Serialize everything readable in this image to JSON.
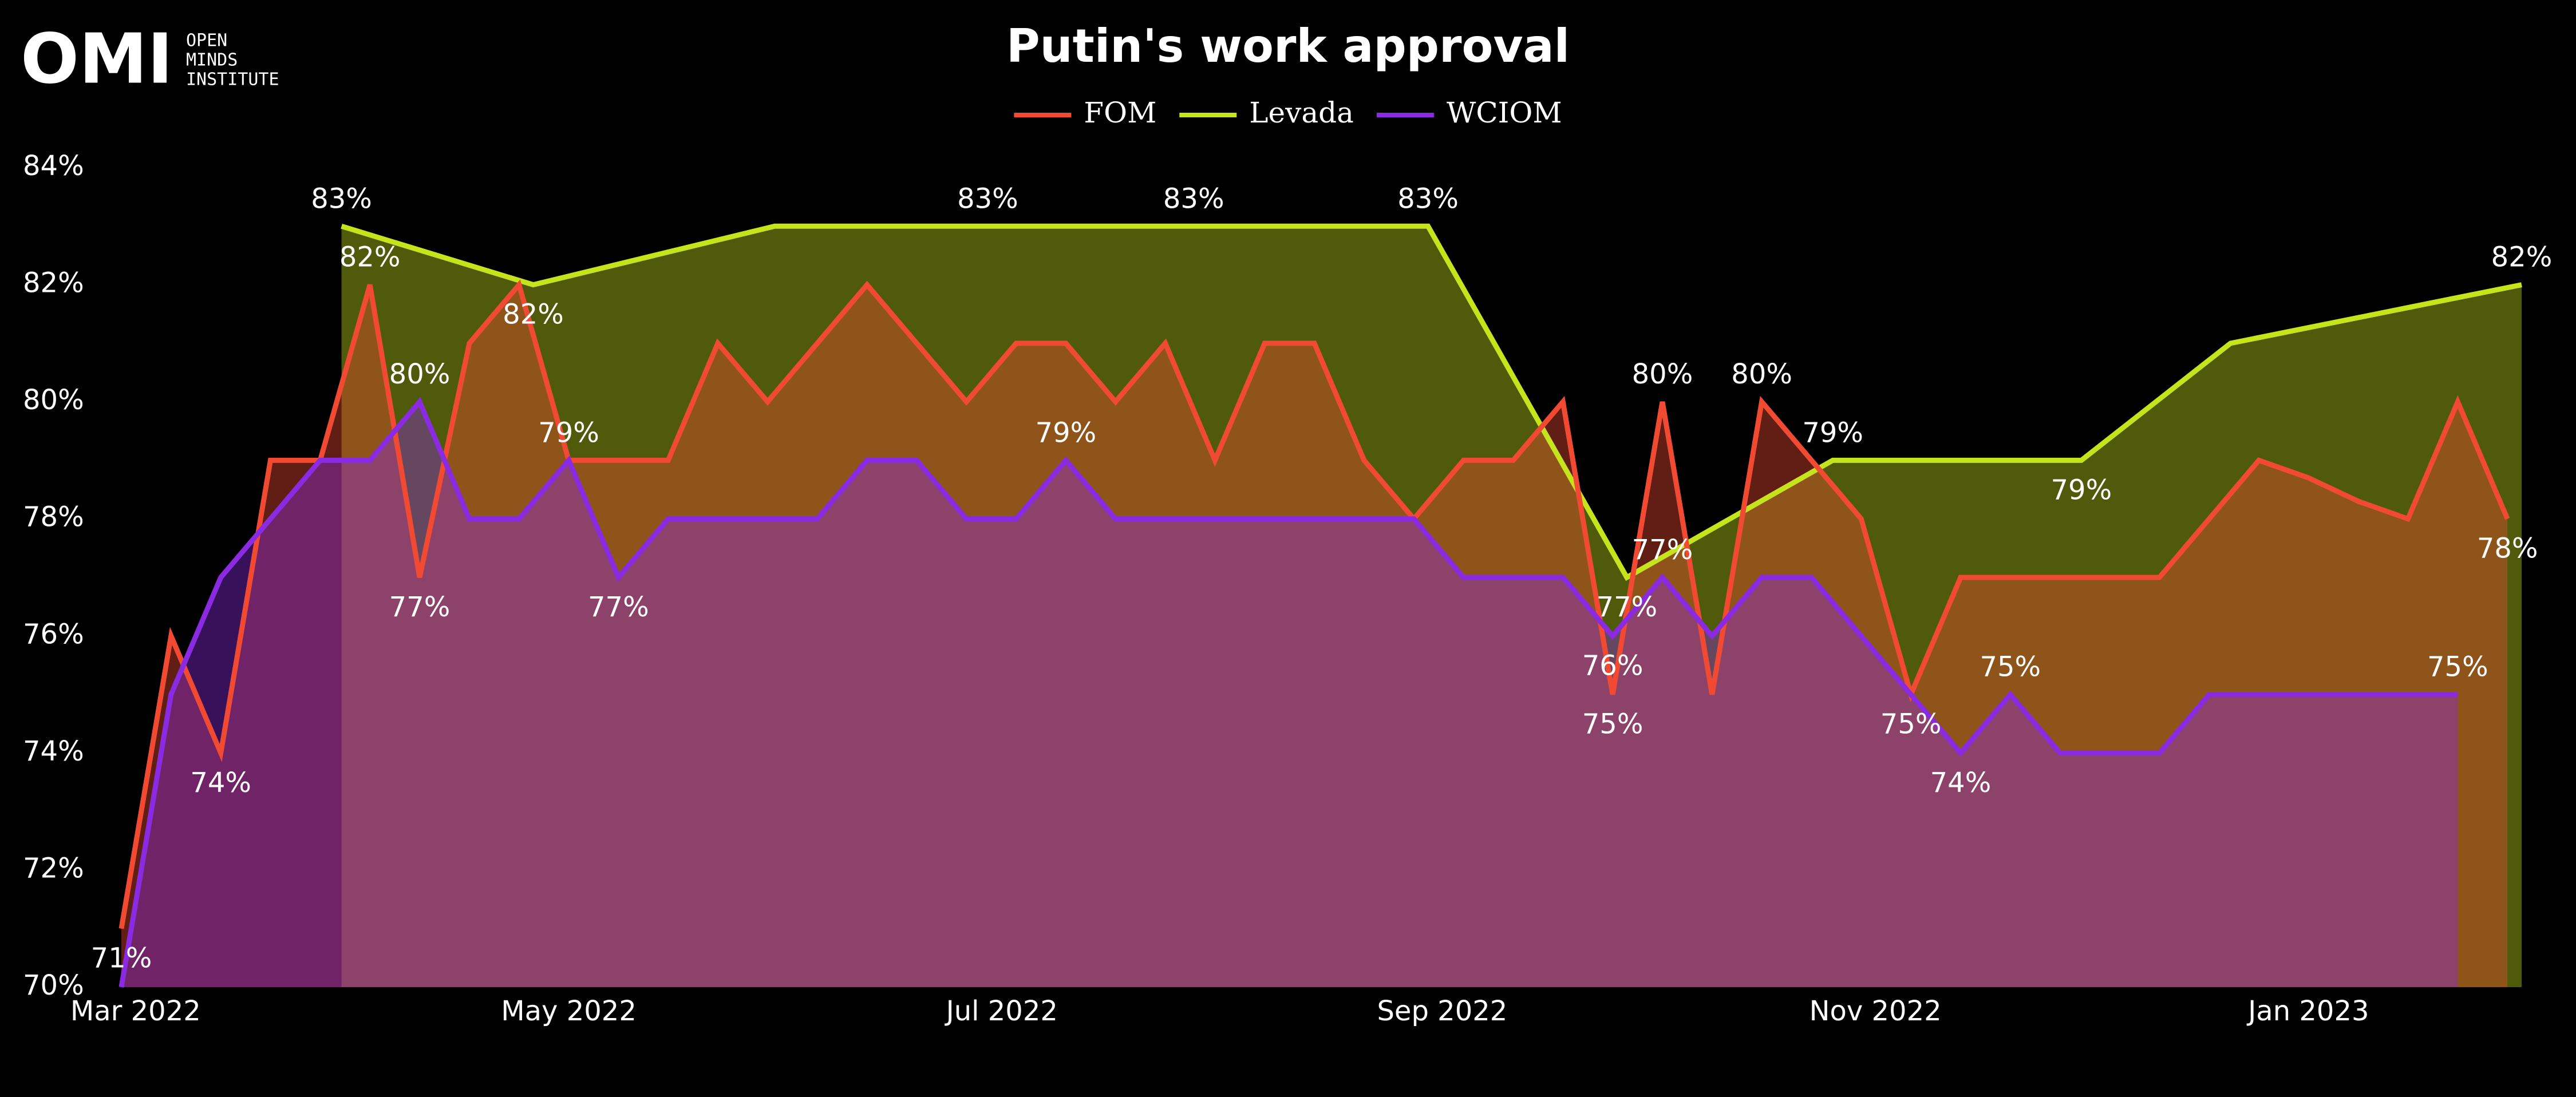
{
  "logo": {
    "mark": "OMI",
    "lines": [
      "OPEN",
      "MINDS",
      "INSTITUTE"
    ]
  },
  "chart_data": {
    "type": "area",
    "title": "Putin's work approval",
    "xlim": [
      "2022-02-27",
      "2023-01-31"
    ],
    "xticks": [
      {
        "value": "2022-03-01",
        "label": "Mar 2022"
      },
      {
        "value": "2022-05-01",
        "label": "May 2022"
      },
      {
        "value": "2022-07-01",
        "label": "Jul 2022"
      },
      {
        "value": "2022-09-01",
        "label": "Sep 2022"
      },
      {
        "value": "2022-11-01",
        "label": "Nov 2022"
      },
      {
        "value": "2023-01-01",
        "label": "Jan 2023"
      }
    ],
    "ylim": [
      70,
      84
    ],
    "yticks": [
      {
        "value": 70,
        "label": "70%"
      },
      {
        "value": 72,
        "label": "72%"
      },
      {
        "value": 74,
        "label": "74%"
      },
      {
        "value": 76,
        "label": "76%"
      },
      {
        "value": 78,
        "label": "78%"
      },
      {
        "value": 80,
        "label": "80%"
      },
      {
        "value": 82,
        "label": "82%"
      },
      {
        "value": 84,
        "label": "84%"
      }
    ],
    "grid": false,
    "legend": "top",
    "series": [
      {
        "name": "Levada",
        "color": "#c6e41c",
        "x": [
          "2022-03-30",
          "2022-04-26",
          "2022-05-30",
          "2022-06-29",
          "2022-07-28",
          "2022-08-30",
          "2022-09-27",
          "2022-10-26",
          "2022-11-30",
          "2022-12-21",
          "2023-01-31"
        ],
        "values": [
          83,
          82,
          83,
          83,
          83,
          83,
          77,
          79,
          79,
          81,
          82
        ],
        "value_labels": [
          "83%",
          "82%",
          null,
          "83%",
          "83%",
          "83%",
          "77%",
          "79%",
          "79%",
          null,
          "82%"
        ]
      },
      {
        "name": "FOM",
        "color": "#f04a32",
        "x": [
          "2022-02-27",
          "2022-03-06",
          "2022-03-13",
          "2022-03-20",
          "2022-03-27",
          "2022-04-03",
          "2022-04-10",
          "2022-04-17",
          "2022-04-24",
          "2022-05-01",
          "2022-05-08",
          "2022-05-15",
          "2022-05-22",
          "2022-05-29",
          "2022-06-05",
          "2022-06-12",
          "2022-06-19",
          "2022-06-26",
          "2022-07-03",
          "2022-07-10",
          "2022-07-17",
          "2022-07-24",
          "2022-07-31",
          "2022-08-07",
          "2022-08-14",
          "2022-08-21",
          "2022-08-28",
          "2022-09-04",
          "2022-09-11",
          "2022-09-18",
          "2022-09-25",
          "2022-10-02",
          "2022-10-09",
          "2022-10-16",
          "2022-10-23",
          "2022-10-30",
          "2022-11-06",
          "2022-11-13",
          "2022-11-20",
          "2022-11-27",
          "2022-12-04",
          "2022-12-11",
          "2022-12-18",
          "2022-12-25",
          "2023-01-01",
          "2023-01-08",
          "2023-01-15",
          "2023-01-22",
          "2023-01-29"
        ],
        "values": [
          71,
          76,
          74,
          79,
          79,
          82,
          77,
          81,
          82,
          79,
          79,
          79,
          81,
          80,
          81,
          82,
          81,
          80,
          81,
          81,
          80,
          81,
          79,
          81,
          81,
          79,
          78,
          79,
          79,
          80,
          75,
          80,
          75,
          80,
          79,
          78,
          75,
          77,
          77,
          77,
          77,
          77,
          78,
          79,
          78.7,
          78.3,
          78,
          80,
          78
        ],
        "value_labels": [
          "71%",
          null,
          "74%",
          null,
          null,
          "82%",
          "77%",
          null,
          null,
          null,
          null,
          null,
          null,
          null,
          null,
          null,
          null,
          null,
          null,
          null,
          null,
          null,
          null,
          null,
          null,
          null,
          null,
          null,
          null,
          null,
          "75%",
          "80%",
          null,
          "80%",
          null,
          null,
          "75%",
          null,
          null,
          null,
          null,
          null,
          null,
          null,
          null,
          null,
          null,
          null,
          "78%"
        ]
      },
      {
        "name": "WCIOM",
        "color": "#8a2be2",
        "x": [
          "2022-02-27",
          "2022-03-06",
          "2022-03-13",
          "2022-03-20",
          "2022-03-27",
          "2022-04-03",
          "2022-04-10",
          "2022-04-17",
          "2022-04-24",
          "2022-05-01",
          "2022-05-08",
          "2022-05-15",
          "2022-05-22",
          "2022-05-29",
          "2022-06-05",
          "2022-06-12",
          "2022-06-19",
          "2022-06-26",
          "2022-07-03",
          "2022-07-10",
          "2022-07-17",
          "2022-07-24",
          "2022-07-31",
          "2022-08-07",
          "2022-08-14",
          "2022-08-21",
          "2022-08-28",
          "2022-09-04",
          "2022-09-11",
          "2022-09-18",
          "2022-09-25",
          "2022-10-02",
          "2022-10-09",
          "2022-10-16",
          "2022-10-23",
          "2022-10-30",
          "2022-11-06",
          "2022-11-13",
          "2022-11-20",
          "2022-11-27",
          "2022-12-04",
          "2022-12-11",
          "2022-12-18",
          "2022-12-25",
          "2023-01-01",
          "2023-01-08",
          "2023-01-15",
          "2023-01-22"
        ],
        "values": [
          70,
          75,
          77,
          78,
          79,
          79,
          80,
          78,
          78,
          79,
          77,
          78,
          78,
          78,
          78,
          79,
          79,
          78,
          78,
          79,
          78,
          78,
          78,
          78,
          78,
          78,
          78,
          77,
          77,
          77,
          76,
          77,
          76,
          77,
          77,
          76,
          75,
          74,
          75,
          74,
          74,
          74,
          75,
          75,
          75,
          75,
          75,
          75
        ],
        "value_labels": [
          null,
          null,
          null,
          null,
          null,
          null,
          "80%",
          null,
          null,
          "79%",
          "77%",
          null,
          null,
          null,
          null,
          null,
          null,
          null,
          null,
          "79%",
          null,
          null,
          null,
          null,
          null,
          null,
          null,
          null,
          null,
          null,
          "76%",
          "77%",
          null,
          null,
          null,
          null,
          null,
          "74%",
          "75%",
          null,
          null,
          null,
          null,
          null,
          null,
          null,
          null,
          "75%"
        ]
      }
    ]
  }
}
